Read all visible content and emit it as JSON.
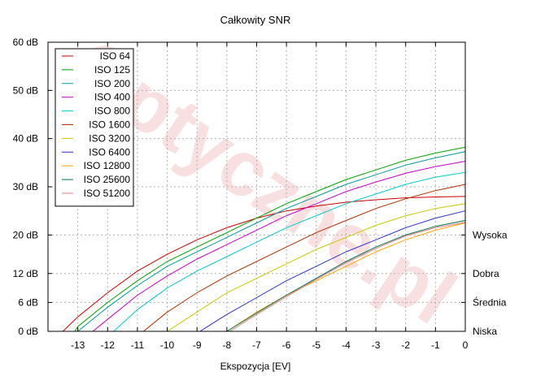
{
  "watermark": "Optyczne.pl",
  "chart_data": {
    "type": "line",
    "title": "Całkowity SNR",
    "xlabel": "Ekspozycja [EV]",
    "ylabel": "",
    "xlim": [
      -14,
      0
    ],
    "ylim": [
      0,
      60
    ],
    "x_ticks": [
      -13,
      -12,
      -11,
      -10,
      -9,
      -8,
      -7,
      -6,
      -5,
      -4,
      -3,
      -2,
      -1,
      0
    ],
    "y_ticks": [
      {
        "value": 0,
        "label": "0 dB"
      },
      {
        "value": 6,
        "label": "6 dB"
      },
      {
        "value": 12,
        "label": "12 dB"
      },
      {
        "value": 20,
        "label": "20 dB"
      },
      {
        "value": 30,
        "label": "30 dB"
      },
      {
        "value": 40,
        "label": "40 dB"
      },
      {
        "value": 50,
        "label": "50 dB"
      },
      {
        "value": 60,
        "label": "60 dB"
      }
    ],
    "right_labels": [
      {
        "value": 20,
        "label": "Wysoka"
      },
      {
        "value": 12,
        "label": "Dobra"
      },
      {
        "value": 6,
        "label": "Średnia"
      },
      {
        "value": 0,
        "label": "Niska"
      }
    ],
    "grid": true,
    "legend_position": "top-left",
    "series": [
      {
        "name": "ISO 64",
        "color": "#cc0000",
        "x": [
          -13.5,
          -13,
          -12,
          -11,
          -10,
          -9,
          -8,
          -7,
          -6,
          -5,
          -4,
          -3,
          -2,
          -1,
          0
        ],
        "y": [
          0,
          3,
          8,
          12.5,
          16,
          19,
          21.5,
          23.5,
          25,
          26,
          26.8,
          27.3,
          27.7,
          27.9,
          28
        ]
      },
      {
        "name": "ISO 125",
        "color": "#00a000",
        "x": [
          -13.1,
          -13,
          -12,
          -11,
          -10,
          -9,
          -8,
          -7,
          -6,
          -5,
          -4,
          -3,
          -2,
          -1,
          0
        ],
        "y": [
          0,
          1,
          6,
          10.5,
          14.5,
          17.5,
          20.5,
          23.5,
          26.5,
          29,
          31.5,
          33.5,
          35.5,
          37,
          38.2
        ]
      },
      {
        "name": "ISO 200",
        "color": "#009999",
        "x": [
          -13.0,
          -12,
          -11,
          -10,
          -9,
          -8,
          -7,
          -6,
          -5,
          -4,
          -3,
          -2,
          -1,
          0
        ],
        "y": [
          0,
          5,
          9.5,
          13.5,
          16.5,
          19.5,
          22.5,
          25.5,
          28,
          30.5,
          32.5,
          34.5,
          36,
          37.3
        ]
      },
      {
        "name": "ISO 400",
        "color": "#cc00cc",
        "x": [
          -12.5,
          -12,
          -11,
          -10,
          -9,
          -8,
          -7,
          -6,
          -5,
          -4,
          -3,
          -2,
          -1,
          0
        ],
        "y": [
          0,
          2.5,
          7.5,
          11.5,
          15,
          18,
          21,
          24,
          26.5,
          29,
          31,
          32.8,
          34.2,
          35.3
        ]
      },
      {
        "name": "ISO 800",
        "color": "#00cccc",
        "x": [
          -11.8,
          -11,
          -10,
          -9,
          -8,
          -7,
          -6,
          -5,
          -4,
          -3,
          -2,
          -1,
          0
        ],
        "y": [
          0,
          4.5,
          9,
          12.5,
          15.5,
          18.5,
          21.5,
          24,
          26.5,
          28.5,
          30.5,
          32,
          33
        ]
      },
      {
        "name": "ISO 1600",
        "color": "#b03000",
        "x": [
          -10.8,
          -10,
          -9,
          -8,
          -7,
          -6,
          -5,
          -4,
          -3,
          -2,
          -1,
          0
        ],
        "y": [
          0,
          4,
          8,
          11.5,
          14.5,
          17.5,
          20.5,
          23,
          25.5,
          27.5,
          29.2,
          30.5
        ]
      },
      {
        "name": "ISO 3200",
        "color": "#c8c800",
        "x": [
          -10.0,
          -9,
          -8,
          -7,
          -6,
          -5,
          -4,
          -3,
          -2,
          -1,
          0
        ],
        "y": [
          0,
          4,
          8,
          11,
          14,
          17,
          19.5,
          22,
          24,
          25.5,
          26.5
        ]
      },
      {
        "name": "ISO 6400",
        "color": "#3030cc",
        "x": [
          -8.9,
          -8,
          -7,
          -6,
          -5,
          -4,
          -3,
          -2,
          -1,
          0
        ],
        "y": [
          0,
          3.5,
          7,
          10.5,
          13.5,
          16.5,
          19,
          21.5,
          23.5,
          25
        ]
      },
      {
        "name": "ISO 12800",
        "color": "#ffa500",
        "x": [
          -8.0,
          -7,
          -6,
          -5,
          -4,
          -3,
          -2,
          -1,
          0
        ],
        "y": [
          0,
          4,
          7.5,
          10.5,
          13.5,
          16.5,
          19,
          21,
          22.5
        ]
      },
      {
        "name": "ISO 25600",
        "color": "#007050",
        "x": [
          -8.0,
          -7,
          -6,
          -5,
          -4,
          -3,
          -2,
          -1,
          0
        ],
        "y": [
          0,
          3.8,
          7.5,
          11,
          14.5,
          17.5,
          20,
          21.8,
          23
        ]
      },
      {
        "name": "ISO 51200",
        "color": "#e08080",
        "x": [
          -7.9,
          -7,
          -6,
          -5,
          -4,
          -3,
          -2,
          -1,
          0
        ],
        "y": [
          0,
          3.5,
          7.2,
          10.8,
          14.2,
          17.2,
          19.8,
          21.5,
          22.6
        ]
      }
    ]
  }
}
